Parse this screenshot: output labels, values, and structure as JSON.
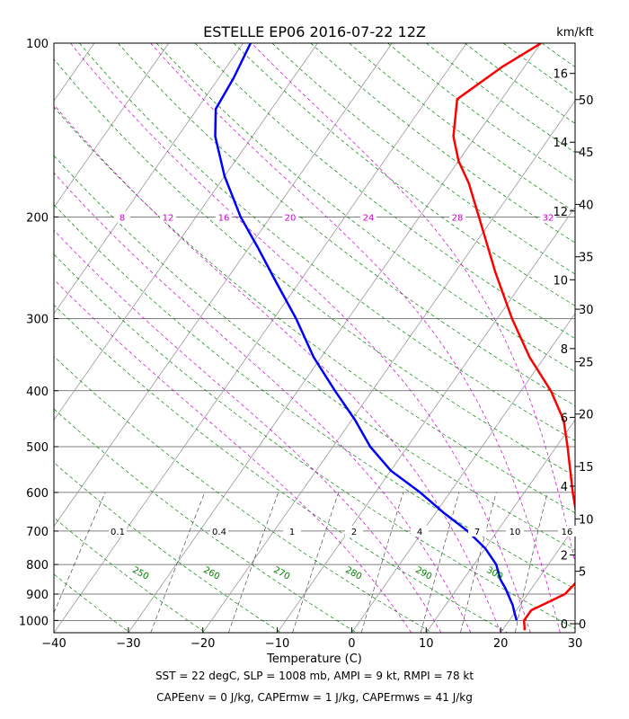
{
  "chart_data": {
    "type": "line",
    "title": "ESTELLE EP06 2016-07-22 12Z",
    "xlabel": "Temperature (C)",
    "ylabel": "",
    "right_axis_title": "km/kft",
    "xlim": [
      -40,
      30
    ],
    "ylim": [
      1050,
      100
    ],
    "x_ticks": [
      -40,
      -30,
      -20,
      -10,
      0,
      10,
      20,
      30
    ],
    "x_tick_labels": [
      "−40",
      "−30",
      "−20",
      "−10",
      "0",
      "10",
      "20",
      "30"
    ],
    "pressure_ticks": [
      100,
      200,
      300,
      400,
      500,
      600,
      700,
      800,
      900,
      1000
    ],
    "km_ticks": [
      0,
      2,
      4,
      6,
      8,
      10,
      12,
      14,
      16
    ],
    "kft_ticks": [
      0,
      5,
      10,
      15,
      20,
      25,
      30,
      35,
      40,
      45,
      50
    ],
    "mixing_ratio_labels": [
      "8",
      "12",
      "16",
      "20",
      "24",
      "28",
      "32"
    ],
    "mixing_ratio_line_labels": [
      "0.1",
      "0.4",
      "1",
      "2",
      "4",
      "7",
      "10",
      "16"
    ],
    "dry_adiabat_labels": [
      "250",
      "260",
      "270",
      "280",
      "290",
      "300"
    ],
    "colors": {
      "temperature": "#ff0000",
      "dewpoint": "#0000ff",
      "dry_adiabat": "#008000",
      "moist_adiabat": "#cc00cc",
      "isotherm": "#999999"
    },
    "series": [
      {
        "name": "Temperature",
        "color": "#ff0000",
        "points": [
          {
            "p": 1040,
            "t": 23.0
          },
          {
            "p": 1000,
            "t": 22.0
          },
          {
            "p": 960,
            "t": 22.0
          },
          {
            "p": 930,
            "t": 23.5
          },
          {
            "p": 900,
            "t": 25.0
          },
          {
            "p": 850,
            "t": 25.5
          },
          {
            "p": 800,
            "t": 25.0
          },
          {
            "p": 750,
            "t": 23.5
          },
          {
            "p": 700,
            "t": 21.0
          },
          {
            "p": 600,
            "t": 16.5
          },
          {
            "p": 500,
            "t": 11.5
          },
          {
            "p": 450,
            "t": 8.5
          },
          {
            "p": 400,
            "t": 4.0
          },
          {
            "p": 350,
            "t": -2.0
          },
          {
            "p": 300,
            "t": -8.0
          },
          {
            "p": 250,
            "t": -14.5
          },
          {
            "p": 200,
            "t": -22.0
          },
          {
            "p": 175,
            "t": -26.5
          },
          {
            "p": 160,
            "t": -30.0
          },
          {
            "p": 145,
            "t": -33.0
          },
          {
            "p": 125,
            "t": -36.0
          },
          {
            "p": 110,
            "t": -33.0
          },
          {
            "p": 100,
            "t": -30.0
          }
        ]
      },
      {
        "name": "Dewpoint",
        "color": "#0000ff",
        "points": [
          {
            "p": 1000,
            "t": 21.0
          },
          {
            "p": 970,
            "t": 20.0
          },
          {
            "p": 940,
            "t": 19.0
          },
          {
            "p": 880,
            "t": 16.5
          },
          {
            "p": 850,
            "t": 15.0
          },
          {
            "p": 800,
            "t": 13.0
          },
          {
            "p": 750,
            "t": 10.0
          },
          {
            "p": 700,
            "t": 6.0
          },
          {
            "p": 650,
            "t": 1.0
          },
          {
            "p": 600,
            "t": -4.0
          },
          {
            "p": 550,
            "t": -10.0
          },
          {
            "p": 500,
            "t": -15.0
          },
          {
            "p": 450,
            "t": -19.5
          },
          {
            "p": 400,
            "t": -25.0
          },
          {
            "p": 350,
            "t": -31.0
          },
          {
            "p": 300,
            "t": -37.0
          },
          {
            "p": 260,
            "t": -43.0
          },
          {
            "p": 225,
            "t": -49.0
          },
          {
            "p": 200,
            "t": -54.0
          },
          {
            "p": 170,
            "t": -60.0
          },
          {
            "p": 145,
            "t": -65.0
          },
          {
            "p": 130,
            "t": -67.5
          },
          {
            "p": 115,
            "t": -68.0
          },
          {
            "p": 100,
            "t": -69.0
          }
        ]
      }
    ]
  },
  "captions": {
    "line1": "SST = 22 degC, SLP = 1008 mb, AMPI = 9 kt, RMPI = 78 kt",
    "line2": "CAPEenv = 0 J/kg, CAPErmw = 1 J/kg, CAPErmws = 41 J/kg"
  }
}
